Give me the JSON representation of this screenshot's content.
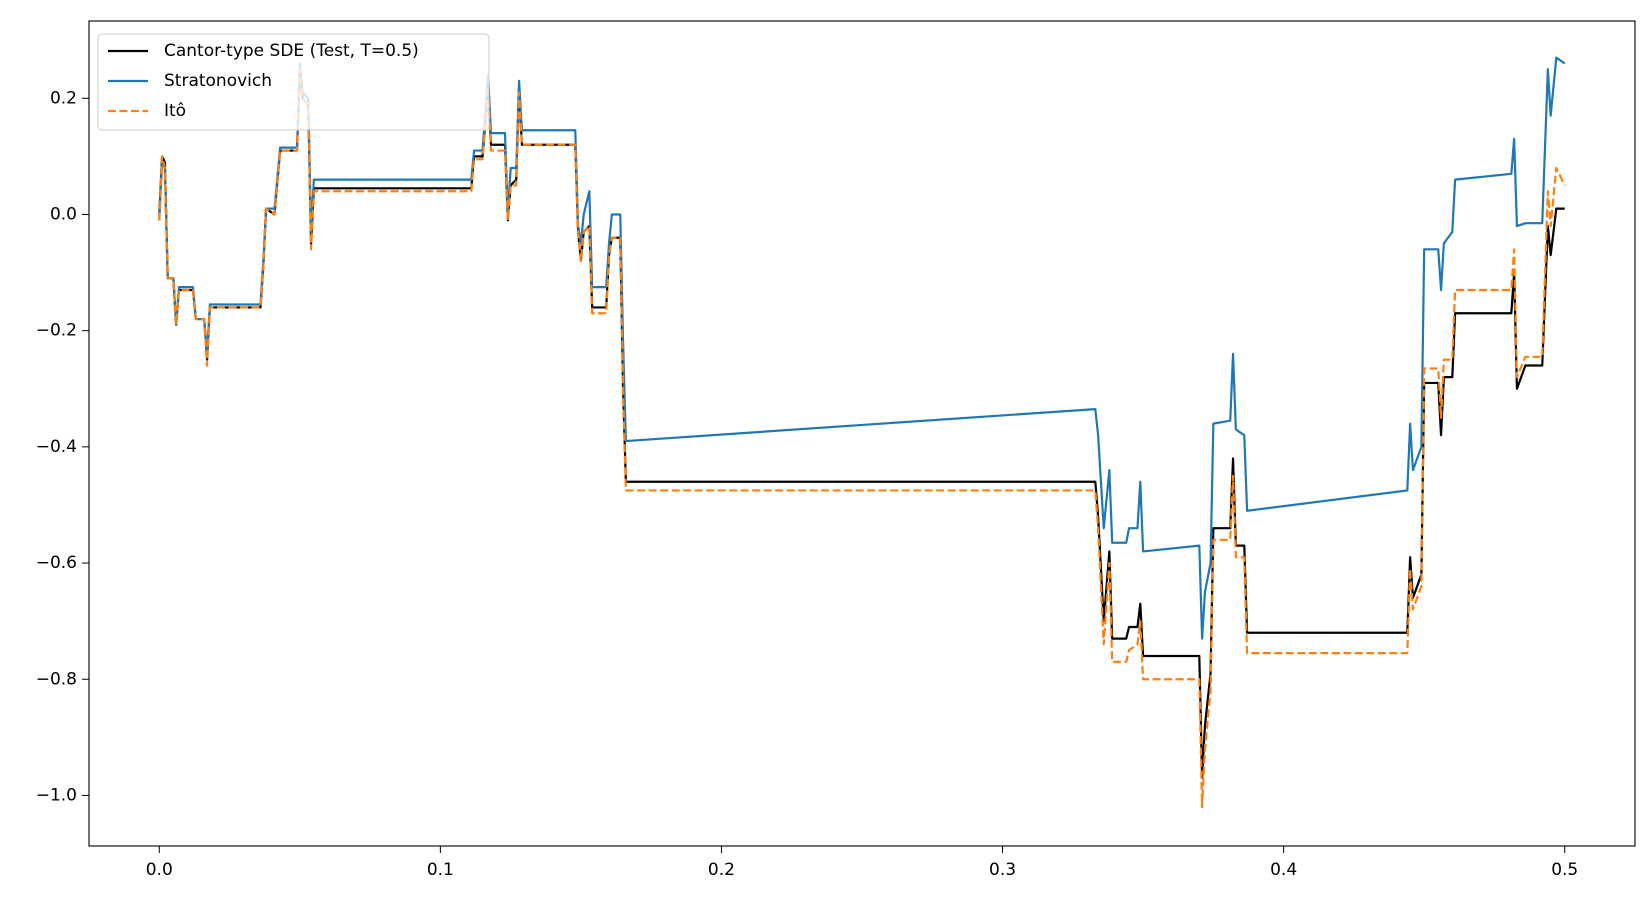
{
  "chart_data": {
    "type": "line",
    "x": [
      0,
      0.001,
      0.002,
      0.003,
      0.005,
      0.006,
      0.007,
      0.012,
      0.013,
      0.016,
      0.017,
      0.018,
      0.036,
      0.037,
      0.038,
      0.041,
      0.043,
      0.049,
      0.05,
      0.051,
      0.053,
      0.054,
      0.055,
      0.111,
      0.112,
      0.115,
      0.117,
      0.118,
      0.123,
      0.124,
      0.125,
      0.127,
      0.128,
      0.129,
      0.148,
      0.149,
      0.15,
      0.151,
      0.153,
      0.154,
      0.159,
      0.16,
      0.161,
      0.164,
      0.165,
      0.166,
      0.333,
      0.334,
      0.336,
      0.338,
      0.339,
      0.344,
      0.345,
      0.348,
      0.349,
      0.35,
      0.37,
      0.371,
      0.372,
      0.374,
      0.375,
      0.381,
      0.382,
      0.383,
      0.386,
      0.387,
      0.444,
      0.445,
      0.446,
      0.449,
      0.45,
      0.455,
      0.456,
      0.457,
      0.46,
      0.461,
      0.481,
      0.482,
      0.483,
      0.486,
      0.492,
      0.494,
      0.495,
      0.497,
      0.5
    ],
    "series": [
      {
        "name": "Cantor-type SDE (Test, T=0.5)",
        "color": "#000000",
        "dash": false,
        "values": [
          0,
          0.1,
          0.09,
          -0.11,
          -0.11,
          -0.19,
          -0.13,
          -0.13,
          -0.18,
          -0.18,
          -0.25,
          -0.16,
          -0.16,
          -0.09,
          0.01,
          0,
          0.11,
          0.11,
          0.25,
          0.2,
          0.19,
          -0.05,
          0.045,
          0.045,
          0.1,
          0.1,
          0.22,
          0.12,
          0.12,
          -0.01,
          0.05,
          0.06,
          0.22,
          0.12,
          0.12,
          -0.03,
          -0.08,
          -0.03,
          -0.02,
          -0.16,
          -0.16,
          -0.07,
          -0.04,
          -0.04,
          -0.3,
          -0.46,
          -0.46,
          -0.52,
          -0.7,
          -0.58,
          -0.73,
          -0.73,
          -0.71,
          -0.71,
          -0.67,
          -0.76,
          -0.76,
          -0.97,
          -0.88,
          -0.79,
          -0.54,
          -0.54,
          -0.42,
          -0.57,
          -0.57,
          -0.72,
          -0.72,
          -0.59,
          -0.66,
          -0.62,
          -0.29,
          -0.29,
          -0.38,
          -0.28,
          -0.28,
          -0.17,
          -0.17,
          -0.1,
          -0.3,
          -0.26,
          -0.26,
          -0.02,
          -0.07,
          0.01,
          0.01
        ]
      },
      {
        "name": "Stratonovich",
        "color": "#1f77b4",
        "dash": false,
        "values": [
          -0.01,
          0.09,
          0.08,
          -0.11,
          -0.11,
          -0.19,
          -0.125,
          -0.125,
          -0.18,
          -0.18,
          -0.24,
          -0.155,
          -0.155,
          -0.08,
          0.01,
          0.01,
          0.115,
          0.115,
          0.26,
          0.21,
          0.2,
          -0.03,
          0.06,
          0.06,
          0.11,
          0.11,
          0.24,
          0.14,
          0.14,
          0.0,
          0.08,
          0.08,
          0.23,
          0.145,
          0.145,
          -0.02,
          -0.05,
          0.0,
          0.04,
          -0.125,
          -0.125,
          -0.05,
          0.0,
          0.0,
          -0.22,
          -0.39,
          -0.335,
          -0.38,
          -0.54,
          -0.44,
          -0.565,
          -0.565,
          -0.54,
          -0.54,
          -0.46,
          -0.58,
          -0.57,
          -0.73,
          -0.65,
          -0.6,
          -0.36,
          -0.355,
          -0.24,
          -0.37,
          -0.38,
          -0.51,
          -0.475,
          -0.36,
          -0.44,
          -0.4,
          -0.06,
          -0.06,
          -0.13,
          -0.05,
          -0.03,
          0.06,
          0.07,
          0.13,
          -0.02,
          -0.015,
          -0.015,
          0.25,
          0.17,
          0.27,
          0.26
        ]
      },
      {
        "name": "Itô",
        "color": "#ff7f0e",
        "dash": true,
        "values": [
          -0.01,
          0.1,
          0.08,
          -0.11,
          -0.11,
          -0.19,
          -0.13,
          -0.13,
          -0.18,
          -0.18,
          -0.26,
          -0.16,
          -0.16,
          -0.09,
          0.01,
          0,
          0.11,
          0.11,
          0.25,
          0.2,
          0.19,
          -0.06,
          0.04,
          0.04,
          0.095,
          0.095,
          0.22,
          0.11,
          0.11,
          -0.01,
          0.05,
          0.05,
          0.21,
          0.12,
          0.12,
          -0.03,
          -0.08,
          -0.03,
          -0.02,
          -0.17,
          -0.17,
          -0.07,
          -0.04,
          -0.04,
          -0.3,
          -0.475,
          -0.475,
          -0.54,
          -0.74,
          -0.6,
          -0.77,
          -0.77,
          -0.75,
          -0.74,
          -0.7,
          -0.8,
          -0.8,
          -1.02,
          -0.92,
          -0.82,
          -0.56,
          -0.56,
          -0.45,
          -0.59,
          -0.59,
          -0.755,
          -0.755,
          -0.61,
          -0.68,
          -0.64,
          -0.265,
          -0.265,
          -0.35,
          -0.25,
          -0.25,
          -0.13,
          -0.13,
          -0.06,
          -0.28,
          -0.245,
          -0.245,
          0.04,
          -0.02,
          0.08,
          0.05
        ]
      }
    ],
    "xlim": [
      -0.025,
      0.525
    ],
    "ylim": [
      -1.087,
      0.333
    ],
    "xticks": [
      {
        "value": 0,
        "label": "0.0"
      },
      0.1,
      0.2,
      0.3,
      0.4,
      0.5
    ],
    "yticks": [
      {
        "value": -1,
        "label": "−1.0"
      },
      {
        "value": -0.8,
        "label": "−0.8"
      },
      {
        "value": -0.6,
        "label": "−0.6"
      },
      {
        "value": -0.4,
        "label": "−0.4"
      },
      {
        "value": -0.2,
        "label": "−0.2"
      },
      {
        "value": 0,
        "label": "0.0"
      },
      0.2
    ],
    "grid": false,
    "legend": "upper left"
  }
}
